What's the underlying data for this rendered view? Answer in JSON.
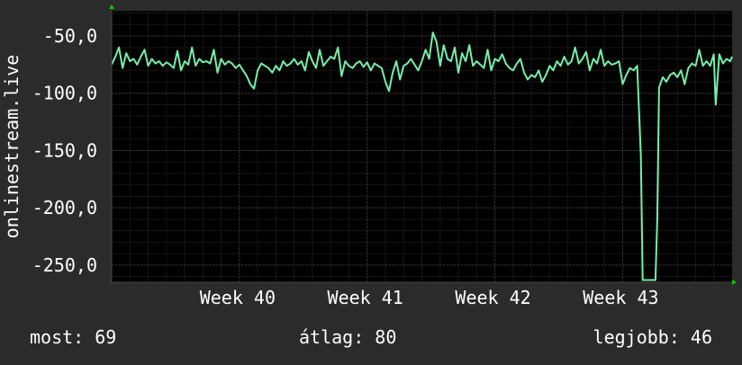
{
  "chart_data": {
    "type": "line",
    "ylabel": "onlinestream.live",
    "ylim": [
      -265,
      -28
    ],
    "yticks": [
      -50,
      -100,
      -150,
      -200,
      -250
    ],
    "ytick_labels": [
      "-50,0",
      "-100,0",
      "-150,0",
      "-200,0",
      "-250,0"
    ],
    "xlim": [
      0,
      34
    ],
    "xticks": [
      {
        "label": "Week 40",
        "x": 7
      },
      {
        "label": "Week 41",
        "x": 14
      },
      {
        "label": "Week 42",
        "x": 21
      },
      {
        "label": "Week 43",
        "x": 28
      }
    ],
    "grid": true,
    "colors": {
      "background": "#2b2b2b",
      "plot_background": "#000000",
      "grid": "#333333",
      "minor_grid": "#161616",
      "line": "#77eeaa",
      "axis_arrow": "#00cc00",
      "text": "#ffffff"
    },
    "series": [
      {
        "values": [
          [
            0.0,
            -75
          ],
          [
            0.2,
            -68
          ],
          [
            0.4,
            -60
          ],
          [
            0.6,
            -78
          ],
          [
            0.8,
            -65
          ],
          [
            1.0,
            -72
          ],
          [
            1.2,
            -70
          ],
          [
            1.4,
            -75
          ],
          [
            1.6,
            -68
          ],
          [
            1.8,
            -62
          ],
          [
            2.0,
            -76
          ],
          [
            2.2,
            -70
          ],
          [
            2.4,
            -74
          ],
          [
            2.6,
            -72
          ],
          [
            2.8,
            -76
          ],
          [
            3.0,
            -73
          ],
          [
            3.2,
            -75
          ],
          [
            3.4,
            -78
          ],
          [
            3.6,
            -63
          ],
          [
            3.8,
            -80
          ],
          [
            4.0,
            -72
          ],
          [
            4.2,
            -75
          ],
          [
            4.4,
            -60
          ],
          [
            4.6,
            -76
          ],
          [
            4.8,
            -70
          ],
          [
            5.0,
            -73
          ],
          [
            5.2,
            -72
          ],
          [
            5.4,
            -74
          ],
          [
            5.6,
            -62
          ],
          [
            5.8,
            -82
          ],
          [
            6.0,
            -70
          ],
          [
            6.2,
            -75
          ],
          [
            6.4,
            -72
          ],
          [
            6.6,
            -74
          ],
          [
            6.8,
            -78
          ],
          [
            7.0,
            -75
          ],
          [
            7.2,
            -80
          ],
          [
            7.4,
            -85
          ],
          [
            7.6,
            -92
          ],
          [
            7.8,
            -96
          ],
          [
            8.0,
            -80
          ],
          [
            8.2,
            -74
          ],
          [
            8.4,
            -76
          ],
          [
            8.6,
            -78
          ],
          [
            8.8,
            -82
          ],
          [
            9.0,
            -76
          ],
          [
            9.2,
            -80
          ],
          [
            9.4,
            -72
          ],
          [
            9.6,
            -76
          ],
          [
            9.8,
            -74
          ],
          [
            10.0,
            -70
          ],
          [
            10.2,
            -75
          ],
          [
            10.4,
            -72
          ],
          [
            10.6,
            -80
          ],
          [
            10.8,
            -64
          ],
          [
            11.0,
            -72
          ],
          [
            11.2,
            -78
          ],
          [
            11.4,
            -62
          ],
          [
            11.6,
            -76
          ],
          [
            11.8,
            -72
          ],
          [
            12.0,
            -68
          ],
          [
            12.2,
            -70
          ],
          [
            12.4,
            -60
          ],
          [
            12.6,
            -85
          ],
          [
            12.8,
            -72
          ],
          [
            13.0,
            -76
          ],
          [
            13.2,
            -78
          ],
          [
            13.4,
            -74
          ],
          [
            13.6,
            -72
          ],
          [
            13.8,
            -77
          ],
          [
            14.0,
            -73
          ],
          [
            14.2,
            -80
          ],
          [
            14.4,
            -74
          ],
          [
            14.6,
            -76
          ],
          [
            14.8,
            -78
          ],
          [
            15.0,
            -90
          ],
          [
            15.2,
            -98
          ],
          [
            15.4,
            -82
          ],
          [
            15.6,
            -72
          ],
          [
            15.8,
            -88
          ],
          [
            16.0,
            -76
          ],
          [
            16.2,
            -74
          ],
          [
            16.4,
            -70
          ],
          [
            16.6,
            -75
          ],
          [
            16.8,
            -80
          ],
          [
            17.0,
            -72
          ],
          [
            17.2,
            -62
          ],
          [
            17.4,
            -70
          ],
          [
            17.6,
            -47
          ],
          [
            17.8,
            -55
          ],
          [
            18.0,
            -76
          ],
          [
            18.2,
            -58
          ],
          [
            18.4,
            -70
          ],
          [
            18.6,
            -72
          ],
          [
            18.8,
            -60
          ],
          [
            19.0,
            -82
          ],
          [
            19.2,
            -65
          ],
          [
            19.4,
            -72
          ],
          [
            19.6,
            -58
          ],
          [
            19.8,
            -76
          ],
          [
            20.0,
            -72
          ],
          [
            20.2,
            -75
          ],
          [
            20.4,
            -78
          ],
          [
            20.6,
            -62
          ],
          [
            20.8,
            -80
          ],
          [
            21.0,
            -70
          ],
          [
            21.2,
            -72
          ],
          [
            21.4,
            -66
          ],
          [
            21.6,
            -74
          ],
          [
            21.8,
            -78
          ],
          [
            22.0,
            -80
          ],
          [
            22.2,
            -74
          ],
          [
            22.4,
            -70
          ],
          [
            22.6,
            -82
          ],
          [
            22.8,
            -88
          ],
          [
            23.0,
            -84
          ],
          [
            23.2,
            -86
          ],
          [
            23.4,
            -80
          ],
          [
            23.6,
            -90
          ],
          [
            23.8,
            -84
          ],
          [
            24.0,
            -76
          ],
          [
            24.2,
            -80
          ],
          [
            24.4,
            -72
          ],
          [
            24.6,
            -76
          ],
          [
            24.8,
            -68
          ],
          [
            25.0,
            -75
          ],
          [
            25.2,
            -72
          ],
          [
            25.4,
            -60
          ],
          [
            25.6,
            -74
          ],
          [
            25.8,
            -70
          ],
          [
            26.0,
            -64
          ],
          [
            26.2,
            -80
          ],
          [
            26.4,
            -70
          ],
          [
            26.6,
            -74
          ],
          [
            26.8,
            -62
          ],
          [
            27.0,
            -76
          ],
          [
            27.2,
            -72
          ],
          [
            27.4,
            -75
          ],
          [
            27.6,
            -74
          ],
          [
            27.8,
            -72
          ],
          [
            28.0,
            -92
          ],
          [
            28.2,
            -84
          ],
          [
            28.4,
            -78
          ],
          [
            28.6,
            -80
          ],
          [
            28.8,
            -76
          ],
          [
            29.0,
            -155
          ],
          [
            29.1,
            -263
          ],
          [
            29.5,
            -263
          ],
          [
            29.8,
            -263
          ],
          [
            29.9,
            -210
          ],
          [
            30.0,
            -95
          ],
          [
            30.2,
            -86
          ],
          [
            30.4,
            -90
          ],
          [
            30.6,
            -84
          ],
          [
            30.8,
            -82
          ],
          [
            31.0,
            -86
          ],
          [
            31.2,
            -80
          ],
          [
            31.4,
            -92
          ],
          [
            31.6,
            -78
          ],
          [
            31.8,
            -74
          ],
          [
            32.0,
            -76
          ],
          [
            32.2,
            -62
          ],
          [
            32.4,
            -76
          ],
          [
            32.6,
            -72
          ],
          [
            32.8,
            -76
          ],
          [
            33.0,
            -66
          ],
          [
            33.1,
            -110
          ],
          [
            33.3,
            -66
          ],
          [
            33.5,
            -74
          ],
          [
            33.7,
            -70
          ],
          [
            33.9,
            -72
          ],
          [
            34.0,
            -68
          ]
        ]
      }
    ],
    "stats": {
      "current_label": "most:",
      "current_value": "69",
      "average_label": "átlag:",
      "average_value": "80",
      "best_label": "legjobb:",
      "best_value": "46"
    }
  }
}
